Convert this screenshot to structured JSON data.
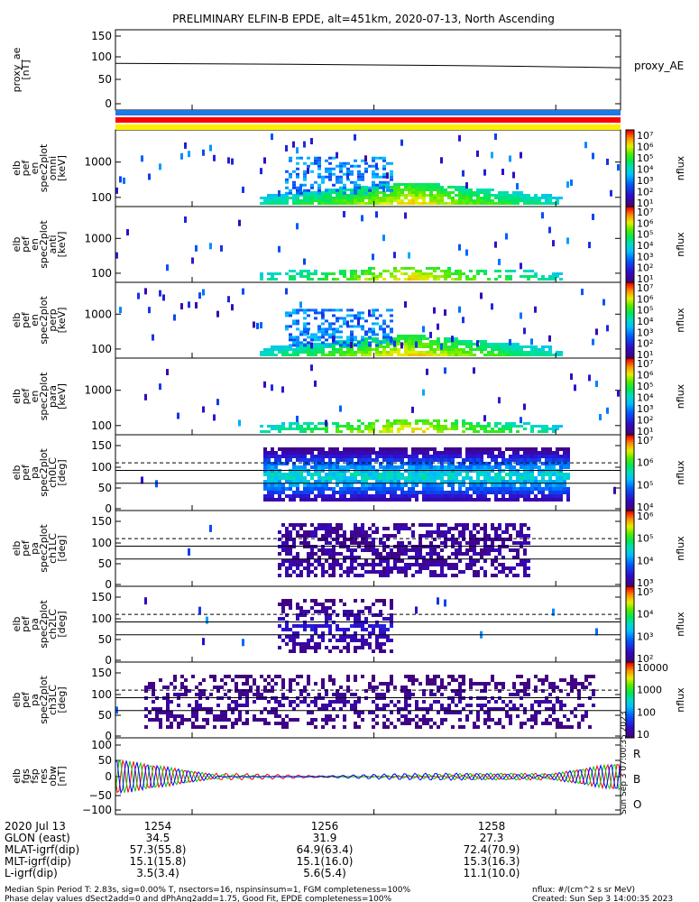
{
  "title": "PRELIMINARY ELFIN-B EPDE, alt=451km, 2020-07-13, North Ascending",
  "panels": [
    {
      "id": "proxy_ae",
      "ylabel": [
        "proxy_ae",
        "[nT]"
      ],
      "right_label": "proxy_AE",
      "yticks": [
        "150",
        "100",
        "50",
        "0"
      ],
      "range": [
        -10,
        155
      ],
      "line": [
        [
          0,
          86
        ],
        [
          0.35,
          84
        ],
        [
          0.6,
          82
        ],
        [
          0.8,
          80
        ],
        [
          1,
          77
        ]
      ]
    },
    {
      "id": "pef_en_spec2plot_omni",
      "ylabel": [
        "elb",
        "pef",
        "en",
        "spec2plot",
        "omni",
        "[keV]"
      ],
      "yticks": [
        "1000",
        "100"
      ],
      "cbar_label": "nflux",
      "cbar_ticks": [
        "10⁷",
        "10⁶",
        "10⁵",
        "10⁴",
        "10³",
        "10²",
        "10¹"
      ]
    },
    {
      "id": "pef_en_spec2plot_anti",
      "ylabel": [
        "elb",
        "pef",
        "en",
        "spec2plot",
        "anti",
        "[keV]"
      ],
      "yticks": [
        "1000",
        "100"
      ],
      "cbar_label": "nflux",
      "cbar_ticks": [
        "10⁷",
        "10⁶",
        "10⁵",
        "10⁴",
        "10³",
        "10²",
        "10¹"
      ]
    },
    {
      "id": "pef_en_spec2plot_perp",
      "ylabel": [
        "elb",
        "pef",
        "en",
        "spec2plot",
        "perp",
        "[keV]"
      ],
      "yticks": [
        "1000",
        "100"
      ],
      "cbar_label": "nflux",
      "cbar_ticks": [
        "10⁷",
        "10⁶",
        "10⁵",
        "10⁴",
        "10³",
        "10²",
        "10¹"
      ]
    },
    {
      "id": "pef_en_spec2plot_para",
      "ylabel": [
        "elb",
        "pef",
        "en",
        "spec2plot",
        "para",
        "[keV]"
      ],
      "yticks": [
        "1000",
        "100"
      ],
      "cbar_label": "nflux",
      "cbar_ticks": [
        "10⁷",
        "10⁶",
        "10⁵",
        "10⁴",
        "10³",
        "10²",
        "10¹"
      ]
    },
    {
      "id": "pef_pa_spec2plot_ch0LC",
      "ylabel": [
        "elb",
        "pef",
        "pa",
        "spec2plot",
        "ch0LC",
        "[deg]"
      ],
      "yticks": [
        "150",
        "100",
        "50",
        "0"
      ],
      "cbar_label": "nflux",
      "cbar_ticks": [
        "10⁷",
        "10⁶",
        "10⁵",
        "10⁴"
      ]
    },
    {
      "id": "pef_pa_spec2plot_ch1LC",
      "ylabel": [
        "elb",
        "pef",
        "pa",
        "spec2plot",
        "ch1LC",
        "[deg]"
      ],
      "yticks": [
        "150",
        "100",
        "50",
        "0"
      ],
      "cbar_label": "nflux",
      "cbar_ticks": [
        "10⁶",
        "10⁵",
        "10⁴",
        "10³"
      ]
    },
    {
      "id": "pef_pa_spec2plot_ch2LC",
      "ylabel": [
        "elb",
        "pef",
        "pa",
        "spec2plot",
        "ch2LC",
        "[deg]"
      ],
      "yticks": [
        "150",
        "100",
        "50",
        "0"
      ],
      "cbar_label": "nflux",
      "cbar_ticks": [
        "10⁵",
        "10⁴",
        "10³",
        "10²"
      ]
    },
    {
      "id": "pef_pa_spec2plot_ch3LC",
      "ylabel": [
        "elb",
        "pef",
        "pa",
        "spec2plot",
        "ch3LC",
        "[deg]"
      ],
      "yticks": [
        "150",
        "100",
        "50",
        "0"
      ],
      "cbar_label": "nflux",
      "cbar_ticks": [
        "10000",
        "1000",
        "100",
        "10"
      ]
    },
    {
      "id": "fgs_fsp_res_obw",
      "ylabel": [
        "elb",
        "fgs",
        "fsp",
        "res",
        "obw",
        "[nT]"
      ],
      "yticks": [
        "100",
        "50",
        "0",
        "−50",
        "−100"
      ],
      "legend": [
        "R",
        "B",
        "O"
      ]
    }
  ],
  "chart_data": {
    "type": "heatmap",
    "title": "PRELIMINARY ELFIN-B EPDE, alt=451km, 2020-07-13, North Ascending",
    "x_ticks": [
      "1254",
      "1256",
      "1258"
    ],
    "proxy_ae_nT": [
      86,
      84,
      82,
      80,
      77
    ],
    "energy_range_keV": [
      60,
      7000
    ],
    "pitch_angle_range_deg": [
      0,
      180
    ],
    "fgs_range_nT": [
      -110,
      110
    ]
  },
  "orbit_table": {
    "rows": [
      {
        "label": "2020 Jul 13",
        "values": [
          "1254",
          "1256",
          "1258"
        ]
      },
      {
        "label": "GLON (east)",
        "values": [
          "34.5",
          "31.9",
          "27.3"
        ]
      },
      {
        "label": "MLAT-igrf(dip)",
        "values": [
          "57.3(55.8)",
          "64.9(63.4)",
          "72.4(70.9)"
        ]
      },
      {
        "label": "MLT-igrf(dip)",
        "values": [
          "15.1(15.8)",
          "15.1(16.0)",
          "15.3(16.3)"
        ]
      },
      {
        "label": "L-igrf(dip)",
        "values": [
          "3.5(3.4)",
          "5.6(5.4)",
          "11.1(10.0)"
        ]
      }
    ]
  },
  "footer": {
    "line1": "Median Spin Period T: 2.83s, sig=0.00% T, nsectors=16, nspinsinsum=1, FGM completeness=100%",
    "line2": "Phase delay values dSect2add=0 and dPhAng2add=1.75, Good Fit, EPDE completeness=100%",
    "units": "nflux: #/(cm^2 s sr MeV)",
    "created": "Created: Sun Sep  3 14:00:35 2023",
    "vertical_stamp": "Sun Sep  3 07:00:35 2023"
  },
  "colors": {
    "status_blue": "#1e78e6",
    "status_red": "#ff0000",
    "status_yellow": "#ffee00"
  }
}
